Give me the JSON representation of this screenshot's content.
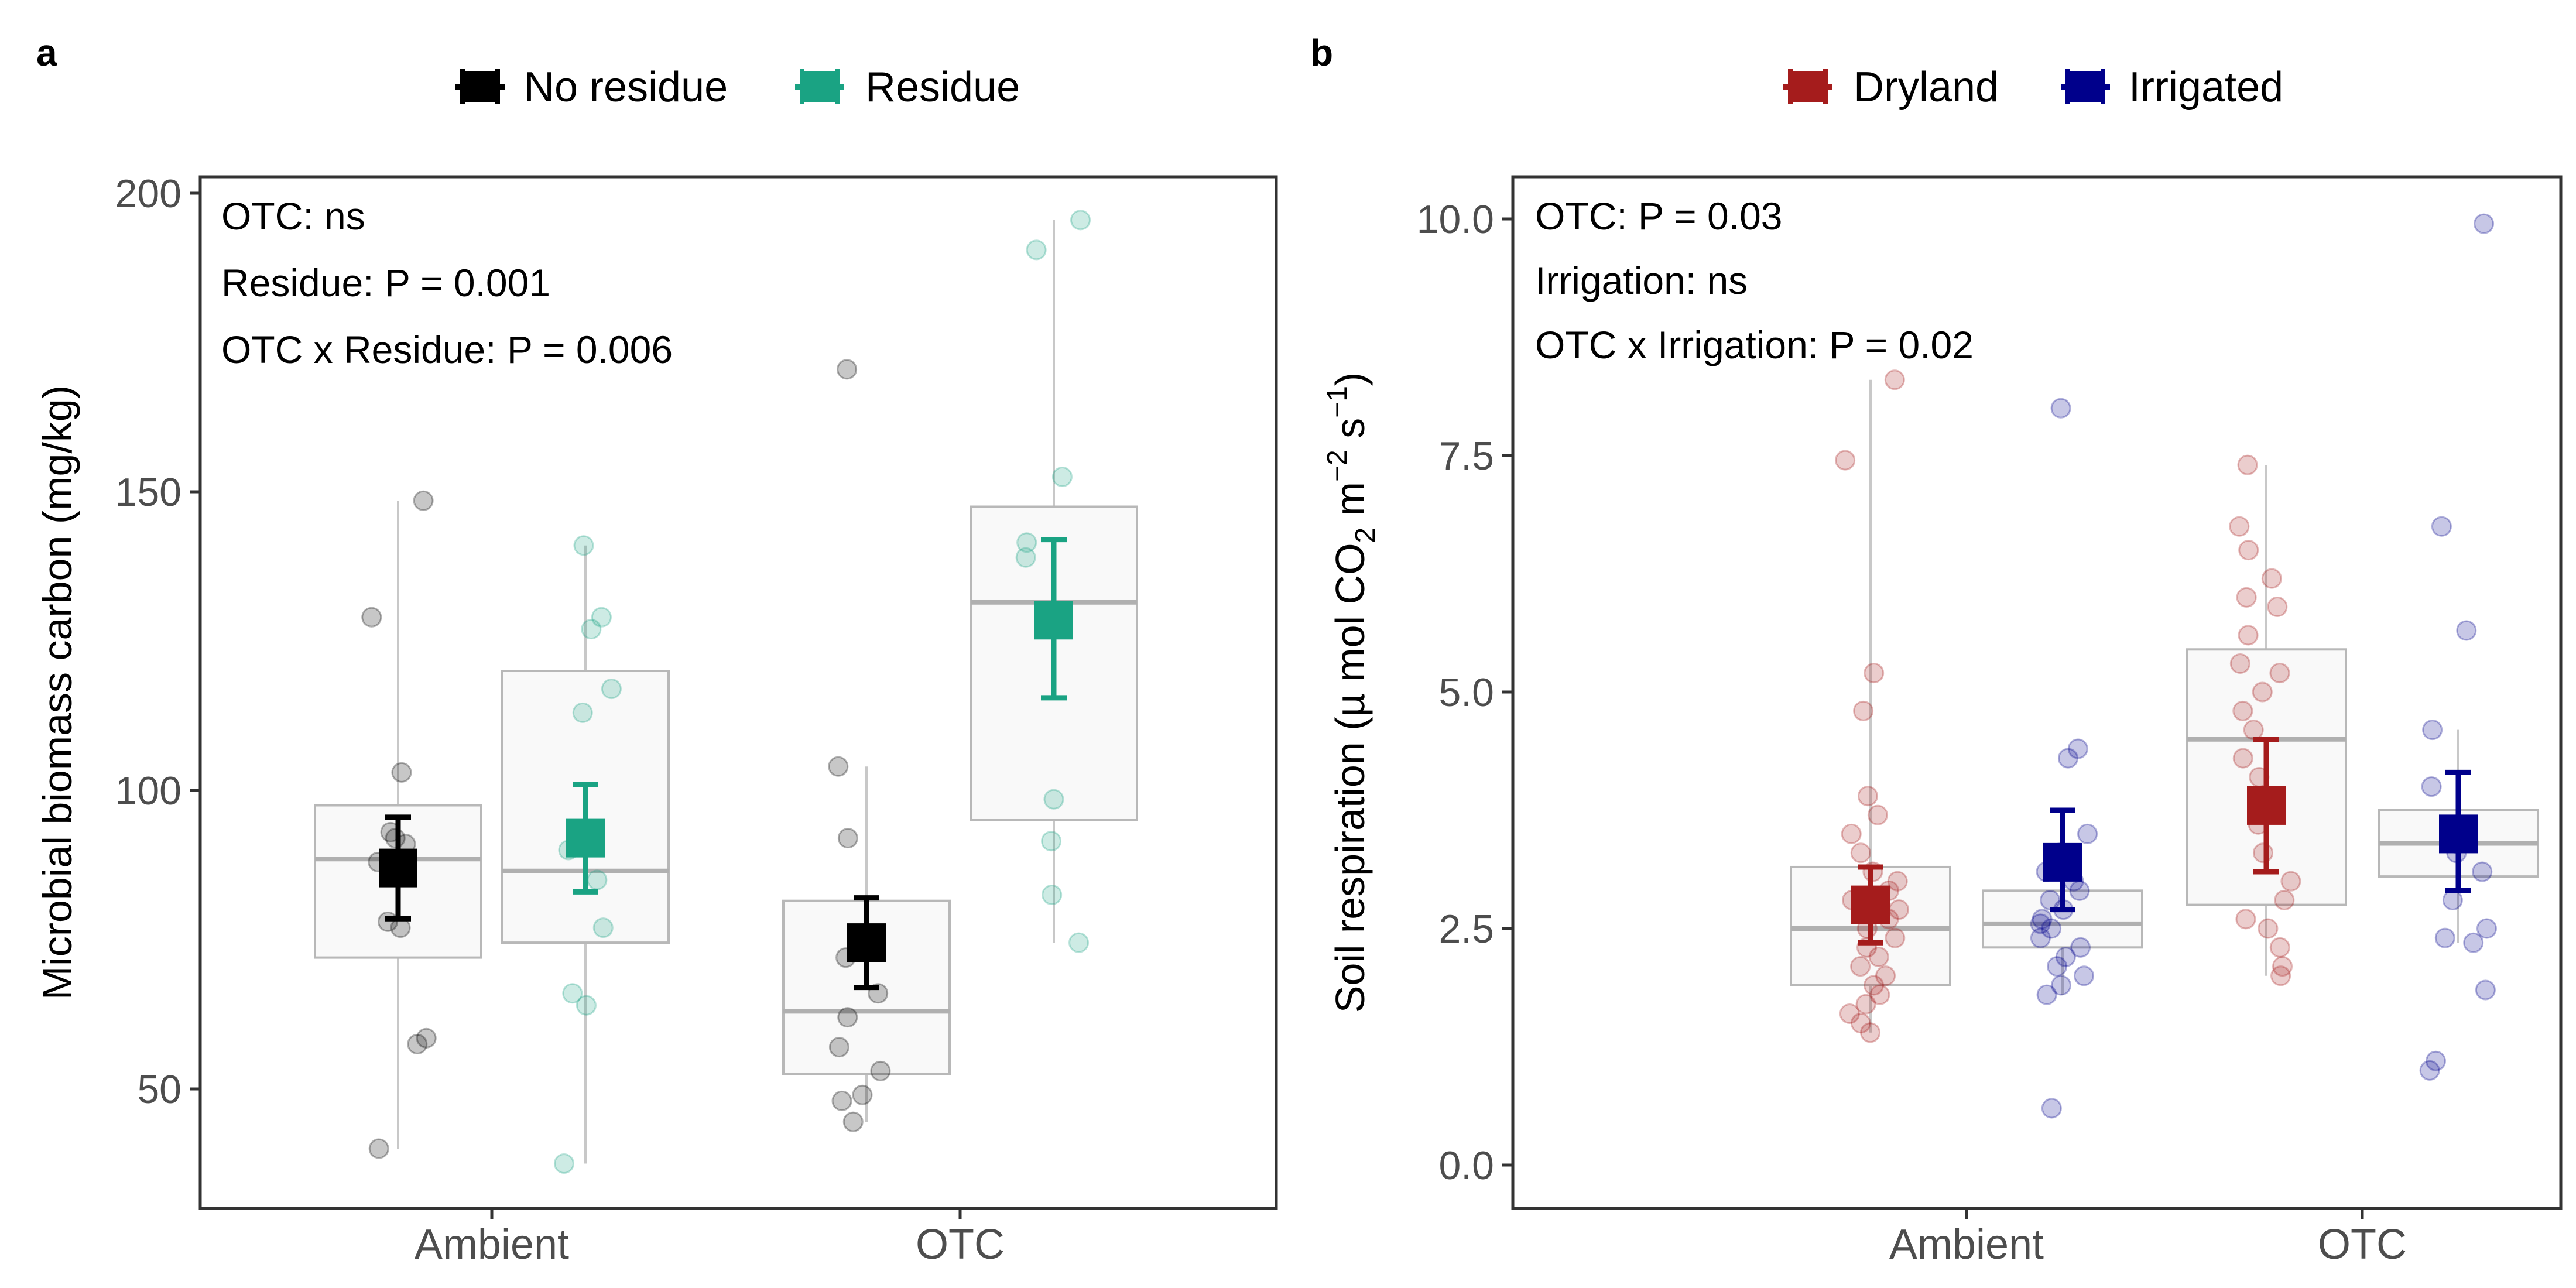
{
  "chart_data": [
    {
      "panel_label": "a",
      "type": "box",
      "legend": [
        {
          "name": "No residue",
          "color": "#000000"
        },
        {
          "name": "Residue",
          "color": "#1aa383"
        }
      ],
      "categories": [
        "Ambient",
        "OTC"
      ],
      "ylabel": "Microbial biomass carbon (mg/kg)",
      "ylim": [
        32,
        206
      ],
      "yticks": [
        50,
        100,
        150,
        200
      ],
      "annotations": [
        "OTC: ns",
        "Residue: P = 0.001",
        "OTC x Residue: P = 0.006"
      ],
      "series": [
        {
          "name": "No residue",
          "color": "#000000",
          "groups": [
            {
              "category": "Ambient",
              "box": {
                "q1": 72,
                "median": 88.5,
                "q3": 97.5,
                "whisker_low": 40,
                "whisker_high": 148.5
              },
              "mean": 87,
              "err_low": 78.5,
              "err_high": 95.5,
              "points": [
                148.5,
                129,
                103,
                93,
                92,
                91,
                88,
                78,
                77,
                58.5,
                57.5,
                40
              ]
            },
            {
              "category": "OTC",
              "box": {
                "q1": 52.5,
                "median": 63,
                "q3": 81.5,
                "whisker_low": 44.5,
                "whisker_high": 104
              },
              "mean": 74.5,
              "err_low": 67,
              "err_high": 82,
              "points": [
                170.5,
                104,
                92,
                75,
                72,
                66,
                62,
                57,
                53,
                49,
                48,
                44.5
              ]
            }
          ]
        },
        {
          "name": "Residue",
          "color": "#1aa383",
          "groups": [
            {
              "category": "Ambient",
              "box": {
                "q1": 74.5,
                "median": 86.5,
                "q3": 120,
                "whisker_low": 37.5,
                "whisker_high": 141
              },
              "mean": 92,
              "err_low": 83,
              "err_high": 101,
              "points": [
                141,
                129,
                127,
                117,
                113,
                90,
                85,
                77,
                66,
                64,
                37.5
              ]
            },
            {
              "category": "OTC",
              "box": {
                "q1": 95,
                "median": 131.5,
                "q3": 147.5,
                "whisker_low": 74.5,
                "whisker_high": 195.5
              },
              "mean": 128.5,
              "err_low": 115.5,
              "err_high": 142,
              "points": [
                195.5,
                190.5,
                152.5,
                141.5,
                139,
                98.5,
                91.5,
                82.5,
                74.5
              ]
            }
          ]
        }
      ]
    },
    {
      "panel_label": "b",
      "type": "box",
      "legend": [
        {
          "name": "Dryland",
          "color": "#a51c1c"
        },
        {
          "name": "Irrigated",
          "color": "#00008b"
        }
      ],
      "categories": [
        "Ambient",
        "OTC"
      ],
      "ylabel_parts": {
        "main": "Soil respiration (µ mol CO",
        "sub": "2",
        "mid1": " m",
        "sup1": "−2",
        "mid2": " s",
        "sup2": "−1",
        "end": ")"
      },
      "ylim": [
        -0.25,
        10.6
      ],
      "yticks": [
        0.0,
        2.5,
        5.0,
        7.5,
        10.0
      ],
      "ytick_labels": [
        "0.0",
        "2.5",
        "5.0",
        "7.5",
        "10.0"
      ],
      "annotations": [
        "OTC: P = 0.03",
        "Irrigation: ns",
        "OTC x Irrigation: P = 0.02"
      ],
      "series": [
        {
          "name": "Dryland",
          "color": "#a51c1c",
          "groups": [
            {
              "category": "Ambient",
              "box": {
                "q1": 1.9,
                "median": 2.5,
                "q3": 3.15,
                "whisker_low": 1.4,
                "whisker_high": 8.3
              },
              "mean": 2.75,
              "err_low": 2.35,
              "err_high": 3.15,
              "points": [
                8.3,
                7.45,
                5.2,
                4.8,
                3.9,
                3.7,
                3.5,
                3.3,
                3.1,
                3.0,
                2.9,
                2.8,
                2.7,
                2.6,
                2.5,
                2.4,
                2.3,
                2.2,
                2.1,
                2.0,
                1.9,
                1.8,
                1.7,
                1.6,
                1.5,
                1.4
              ]
            },
            {
              "category": "OTC",
              "box": {
                "q1": 2.75,
                "median": 4.5,
                "q3": 5.45,
                "whisker_low": 2.0,
                "whisker_high": 7.4
              },
              "mean": 3.8,
              "err_low": 3.1,
              "err_high": 4.5,
              "points": [
                7.4,
                6.75,
                6.5,
                6.2,
                6.0,
                5.9,
                5.6,
                5.3,
                5.2,
                5.0,
                4.8,
                4.6,
                4.3,
                4.1,
                3.9,
                3.6,
                3.3,
                3.0,
                2.8,
                2.6,
                2.5,
                2.3,
                2.1,
                2.0
              ]
            }
          ]
        },
        {
          "name": "Irrigated",
          "color": "#00008b",
          "groups": [
            {
              "category": "Ambient",
              "box": {
                "q1": 2.3,
                "median": 2.55,
                "q3": 2.9,
                "whisker_low": 1.8,
                "whisker_high": 3.7
              },
              "mean": 3.2,
              "err_low": 2.7,
              "err_high": 3.75,
              "points": [
                8.0,
                4.4,
                4.3,
                3.5,
                3.3,
                3.1,
                3.0,
                2.9,
                2.8,
                2.7,
                2.6,
                2.55,
                2.5,
                2.4,
                2.3,
                2.2,
                2.1,
                2.0,
                1.9,
                1.8,
                0.6
              ]
            },
            {
              "category": "OTC",
              "box": {
                "q1": 3.05,
                "median": 3.4,
                "q3": 3.75,
                "whisker_low": 2.35,
                "whisker_high": 4.6
              },
              "mean": 3.5,
              "err_low": 2.9,
              "err_high": 4.15,
              "points": [
                9.95,
                6.75,
                5.65,
                4.6,
                4.0,
                3.6,
                3.4,
                3.3,
                3.1,
                2.8,
                2.5,
                2.4,
                2.35,
                1.85,
                1.1,
                1.0
              ]
            }
          ]
        }
      ]
    }
  ]
}
